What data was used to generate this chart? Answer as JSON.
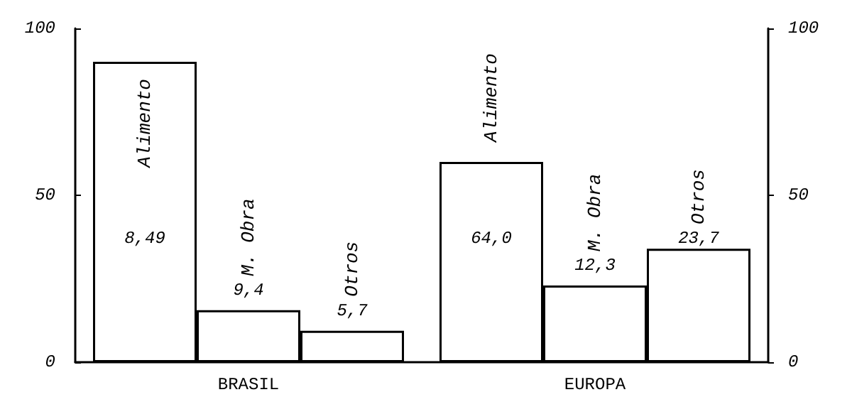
{
  "chart_data": {
    "type": "bar",
    "categories": [
      "BRASIL",
      "EUROPA"
    ],
    "series": [
      {
        "name": "Alimento",
        "color": "#ffffff",
        "values": [
          90,
          60
        ]
      },
      {
        "name": "M. Obra",
        "color": "#ffffff",
        "values": [
          15.6,
          23
        ]
      },
      {
        "name": "Otros",
        "color": "#ffffff",
        "values": [
          9.4,
          34
        ]
      }
    ],
    "annotations": [
      "8,49",
      "9,4",
      "5,7",
      "64,0",
      "12,3",
      "23,7"
    ],
    "ylim": [
      0,
      100
    ],
    "yticks": [
      0,
      50,
      100
    ],
    "y2lim": [
      0,
      100
    ],
    "y2ticks": [
      0,
      50,
      100
    ],
    "grid": false,
    "legend": false
  }
}
